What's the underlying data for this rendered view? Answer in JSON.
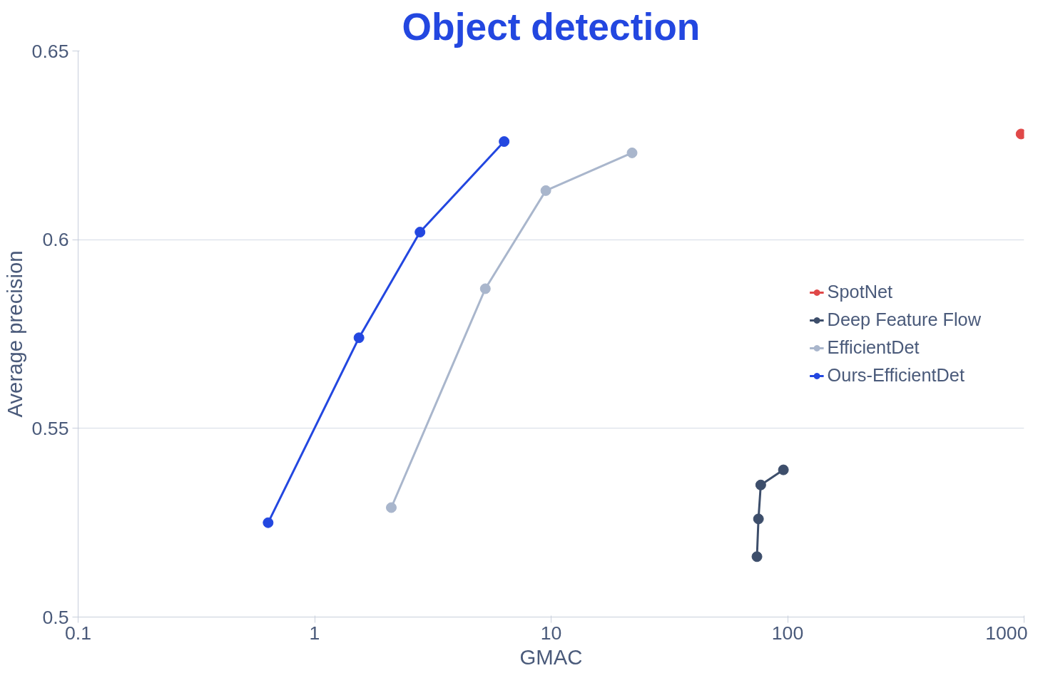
{
  "chart_data": {
    "type": "line",
    "title": "Object detection",
    "xlabel": "GMAC",
    "ylabel": "Average precision",
    "log": "x",
    "xlim": [
      0.1,
      1000
    ],
    "xticks": [
      0.1,
      1,
      10,
      100,
      1000
    ],
    "ylim": [
      0.5,
      0.65
    ],
    "yticks": [
      0.5,
      0.55,
      0.6,
      0.65
    ],
    "grid": "y",
    "legend": "right",
    "marker": "circle",
    "line_style": "solid",
    "series": [
      {
        "name": "SpotNet",
        "color": "#e04848",
        "x": [
          971
        ],
        "values": [
          0.628
        ]
      },
      {
        "name": "Deep Feature Flow",
        "color": "#3d4e6b",
        "x": [
          74.2,
          75.3,
          77.0,
          96.0
        ],
        "values": [
          0.516,
          0.526,
          0.535,
          0.539
        ]
      },
      {
        "name": "EfficientDet",
        "color": "#a9b6cc",
        "x": [
          2.11,
          5.27,
          9.5,
          22.0
        ],
        "values": [
          0.529,
          0.587,
          0.613,
          0.623
        ]
      },
      {
        "name": "Ours-EfficientDet",
        "color": "#2347e0",
        "x": [
          0.636,
          1.54,
          2.79,
          6.33
        ],
        "values": [
          0.525,
          0.574,
          0.602,
          0.626
        ]
      }
    ]
  }
}
